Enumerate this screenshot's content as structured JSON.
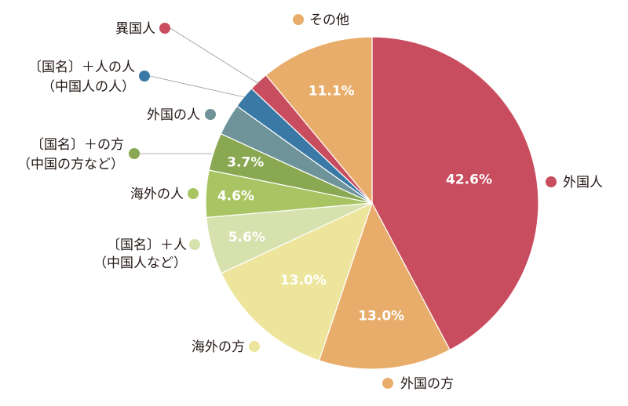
{
  "chart_data": {
    "type": "pie",
    "start": "top",
    "direction": "clockwise",
    "slices": [
      {
        "label": "外国人",
        "value": 42.6,
        "pct_text": "42.6%",
        "color": "#c84d5f"
      },
      {
        "label": "外国の方",
        "value": 13.0,
        "pct_text": "13.0%",
        "color": "#e8ad6a"
      },
      {
        "label": "海外の方",
        "value": 13.0,
        "pct_text": "13.0%",
        "color": "#ede59c"
      },
      {
        "label_lines": [
          "〔国名〕＋人",
          "（中国人など）"
        ],
        "value": 5.6,
        "pct_text": "5.6%",
        "color": "#d7e1ae"
      },
      {
        "label": "海外の人",
        "value": 4.6,
        "pct_text": "4.6%",
        "color": "#a9c563"
      },
      {
        "label_lines": [
          "〔国名〕＋の方",
          "（中国の方など）"
        ],
        "value": 3.7,
        "pct_text": "3.7%",
        "color": "#89a851"
      },
      {
        "label": "外国の人",
        "value": 3.1,
        "pct_text": "",
        "color": "#6e9399"
      },
      {
        "label_lines": [
          "〔国名〕＋人の人",
          "（中国人の人）"
        ],
        "value": 2.2,
        "pct_text": "",
        "color": "#3a79a5"
      },
      {
        "label": "異国人",
        "value": 1.9,
        "pct_text": "",
        "color": "#c84d5f"
      },
      {
        "label": "その他",
        "value": 11.1,
        "pct_text": "11.1%",
        "color": "#e8ad6a"
      }
    ]
  }
}
